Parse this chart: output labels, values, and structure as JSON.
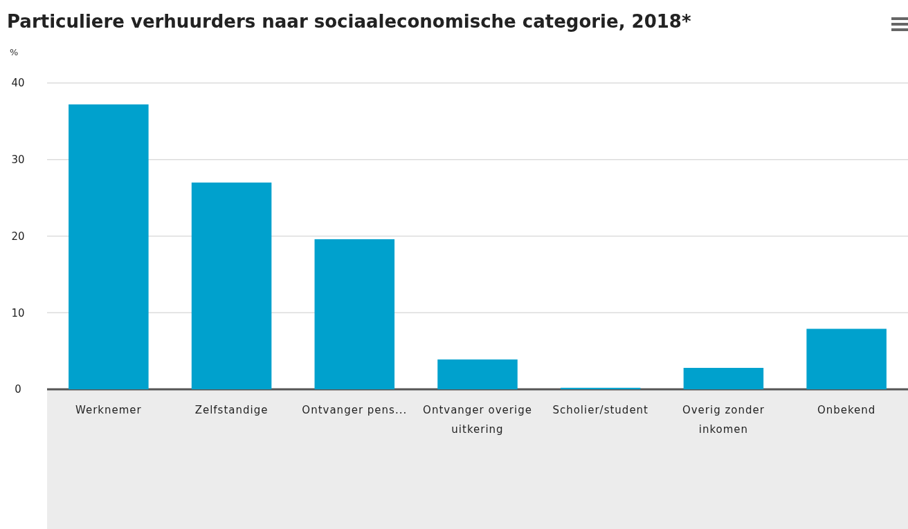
{
  "chart_data": {
    "type": "bar",
    "title": "Particuliere verhuurders naar sociaaleconomische categorie, 2018*",
    "ylabel": "%",
    "categories": [
      "Werknemer",
      "Zelfstandige",
      "Ontvanger pens...",
      "Ontvanger overige uitkering",
      "Scholier/student",
      "Overig zonder inkomen",
      "Onbekend"
    ],
    "values": [
      37.2,
      27.0,
      19.6,
      3.9,
      0.2,
      2.8,
      7.9
    ],
    "color": "#00a1cd",
    "ylim": [
      0,
      40
    ],
    "yticks": [
      0,
      10,
      20,
      30,
      40
    ],
    "grid": "y"
  }
}
